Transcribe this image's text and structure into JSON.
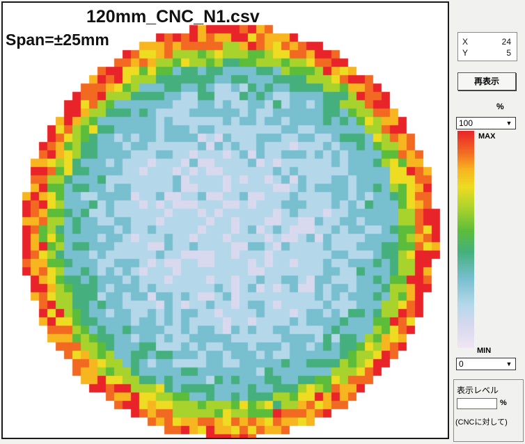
{
  "plot": {
    "title": "120mm_CNC_N1.csv",
    "span_label": "Span=±25mm"
  },
  "cursor": {
    "x_label": "X",
    "x_value": "24",
    "y_label": "Y",
    "y_value": "5"
  },
  "controls": {
    "redisplay_label": "再表示",
    "percent_unit": "%",
    "max_select_value": "100",
    "max_label": "MAX",
    "min_label": "MIN",
    "min_select_value": "0",
    "level_title": "表示レベル",
    "level_value": "",
    "level_unit": "%",
    "level_note": "(CNCに対して)"
  },
  "colors": {
    "panel_bg": "#ffffff",
    "scale": [
      "#efe6f4",
      "#d8d8ee",
      "#b4d8ea",
      "#78bfd0",
      "#45b07e",
      "#5cbd3a",
      "#a8d22c",
      "#eddc22",
      "#f7b51f",
      "#f26a22",
      "#e8242a"
    ]
  }
}
